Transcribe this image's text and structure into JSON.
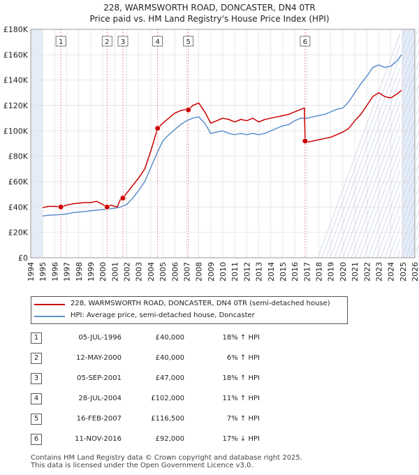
{
  "chart_data": {
    "type": "line",
    "title": "228, WARMSWORTH ROAD, DONCASTER, DN4 0TR",
    "subtitle": "Price paid vs. HM Land Registry's House Price Index (HPI)",
    "xlim": [
      1994,
      2026
    ],
    "ylim": [
      0,
      180000
    ],
    "x_ticks": [
      "1994",
      "1995",
      "1996",
      "1997",
      "1998",
      "1999",
      "2000",
      "2001",
      "2002",
      "2003",
      "2004",
      "2005",
      "2006",
      "2007",
      "2008",
      "2009",
      "2010",
      "2011",
      "2012",
      "2013",
      "2014",
      "2015",
      "2016",
      "2017",
      "2018",
      "2019",
      "2020",
      "2021",
      "2022",
      "2023",
      "2024",
      "2025",
      "2026"
    ],
    "y_ticks": [
      "£0",
      "£20K",
      "£40K",
      "£60K",
      "£80K",
      "£100K",
      "£120K",
      "£140K",
      "£160K",
      "£180K"
    ],
    "grid": true,
    "colors": {
      "property": "#cc0000",
      "hpi": "#5b8fcc",
      "shade": "#e6ecf7",
      "vline": "#dd4444"
    },
    "series": [
      {
        "name": "228, WARMSWORTH ROAD, DONCASTER, DN4 0TR (semi-detached house)",
        "x": [
          1995.0,
          1995.5,
          1996.0,
          1996.51,
          1997.0,
          1997.5,
          1998.0,
          1998.5,
          1999.0,
          1999.5,
          2000.0,
          2000.36,
          2000.7,
          2001.0,
          2001.2,
          2001.5,
          2001.68,
          2002.0,
          2002.5,
          2003.0,
          2003.5,
          2004.0,
          2004.57,
          2005.0,
          2005.5,
          2006.0,
          2006.5,
          2007.0,
          2007.13,
          2007.5,
          2008.0,
          2008.5,
          2009.0,
          2009.5,
          2010.0,
          2010.5,
          2011.0,
          2011.5,
          2012.0,
          2012.5,
          2013.0,
          2013.5,
          2014.0,
          2014.5,
          2015.0,
          2015.5,
          2016.0,
          2016.5,
          2016.8,
          2016.86,
          2017.0,
          2017.5,
          2018.0,
          2018.5,
          2019.0,
          2019.5,
          2020.0,
          2020.5,
          2021.0,
          2021.5,
          2022.0,
          2022.5,
          2023.0,
          2023.5,
          2024.0,
          2024.5,
          2024.9
        ],
        "y": [
          39500,
          40500,
          40500,
          40000,
          41500,
          42500,
          43000,
          43500,
          43500,
          44500,
          42000,
          40000,
          41500,
          40500,
          40000,
          46500,
          47000,
          51000,
          57000,
          63000,
          70000,
          84000,
          102000,
          106000,
          110000,
          114000,
          116000,
          117000,
          116500,
          120000,
          122000,
          115000,
          106000,
          108000,
          110000,
          109000,
          107000,
          109000,
          108000,
          110000,
          107000,
          109000,
          110000,
          111000,
          112000,
          113000,
          115000,
          117000,
          118000,
          92000,
          91000,
          92000,
          93000,
          94000,
          95000,
          97000,
          99000,
          102000,
          108000,
          113000,
          120000,
          127000,
          130000,
          127000,
          126000,
          129000,
          132000
        ]
      },
      {
        "name": "HPI: Average price, semi-detached house, Doncaster",
        "x": [
          1995.0,
          1995.5,
          1996.0,
          1996.5,
          1997.0,
          1997.5,
          1998.0,
          1998.5,
          1999.0,
          1999.5,
          2000.0,
          2000.5,
          2001.0,
          2001.5,
          2002.0,
          2002.5,
          2003.0,
          2003.5,
          2004.0,
          2004.5,
          2005.0,
          2005.5,
          2006.0,
          2006.5,
          2007.0,
          2007.5,
          2008.0,
          2008.5,
          2009.0,
          2009.5,
          2010.0,
          2010.5,
          2011.0,
          2011.5,
          2012.0,
          2012.5,
          2013.0,
          2013.5,
          2014.0,
          2014.5,
          2015.0,
          2015.5,
          2016.0,
          2016.5,
          2017.0,
          2017.5,
          2018.0,
          2018.5,
          2019.0,
          2019.5,
          2020.0,
          2020.5,
          2021.0,
          2021.5,
          2022.0,
          2022.5,
          2023.0,
          2023.5,
          2024.0,
          2024.5,
          2024.9
        ],
        "y": [
          33000,
          33500,
          33800,
          34000,
          34500,
          35500,
          36000,
          36500,
          37000,
          37500,
          38000,
          38500,
          39000,
          40000,
          42000,
          47000,
          53000,
          60000,
          71000,
          82000,
          92000,
          97000,
          101000,
          105000,
          108000,
          110000,
          111000,
          106000,
          98000,
          99000,
          100000,
          98000,
          97000,
          98000,
          97000,
          98000,
          97000,
          98000,
          100000,
          102000,
          104000,
          105000,
          108000,
          110000,
          110000,
          111000,
          112000,
          113000,
          115000,
          117000,
          118000,
          123000,
          130000,
          137000,
          143000,
          150000,
          152000,
          150000,
          151000,
          155000,
          160000
        ]
      }
    ],
    "sales": [
      {
        "n": "1",
        "x": 1996.51,
        "y": 40000
      },
      {
        "n": "2",
        "x": 2000.36,
        "y": 40000
      },
      {
        "n": "3",
        "x": 2001.68,
        "y": 47000
      },
      {
        "n": "4",
        "x": 2004.57,
        "y": 102000
      },
      {
        "n": "5",
        "x": 2007.13,
        "y": 116500
      },
      {
        "n": "6",
        "x": 2016.86,
        "y": 92000
      }
    ],
    "shaded_spans": [
      [
        1994,
        1995.0
      ],
      [
        2024.9,
        2026
      ]
    ]
  },
  "legend": {
    "property_label": "228, WARMSWORTH ROAD, DONCASTER, DN4 0TR (semi-detached house)",
    "hpi_label": "HPI: Average price, semi-detached house, Doncaster"
  },
  "transactions": [
    {
      "num": "1",
      "date": "05-JUL-1996",
      "price": "£40,000",
      "hpi": "18% ↑ HPI"
    },
    {
      "num": "2",
      "date": "12-MAY-2000",
      "price": "£40,000",
      "hpi": "6% ↑ HPI"
    },
    {
      "num": "3",
      "date": "05-SEP-2001",
      "price": "£47,000",
      "hpi": "18% ↑ HPI"
    },
    {
      "num": "4",
      "date": "28-JUL-2004",
      "price": "£102,000",
      "hpi": "11% ↑ HPI"
    },
    {
      "num": "5",
      "date": "16-FEB-2007",
      "price": "£116,500",
      "hpi": "7% ↑ HPI"
    },
    {
      "num": "6",
      "date": "11-NOV-2016",
      "price": "£92,000",
      "hpi": "17% ↓ HPI"
    }
  ],
  "footer": {
    "line1": "Contains HM Land Registry data © Crown copyright and database right 2025.",
    "line2": "This data is licensed under the Open Government Licence v3.0."
  }
}
